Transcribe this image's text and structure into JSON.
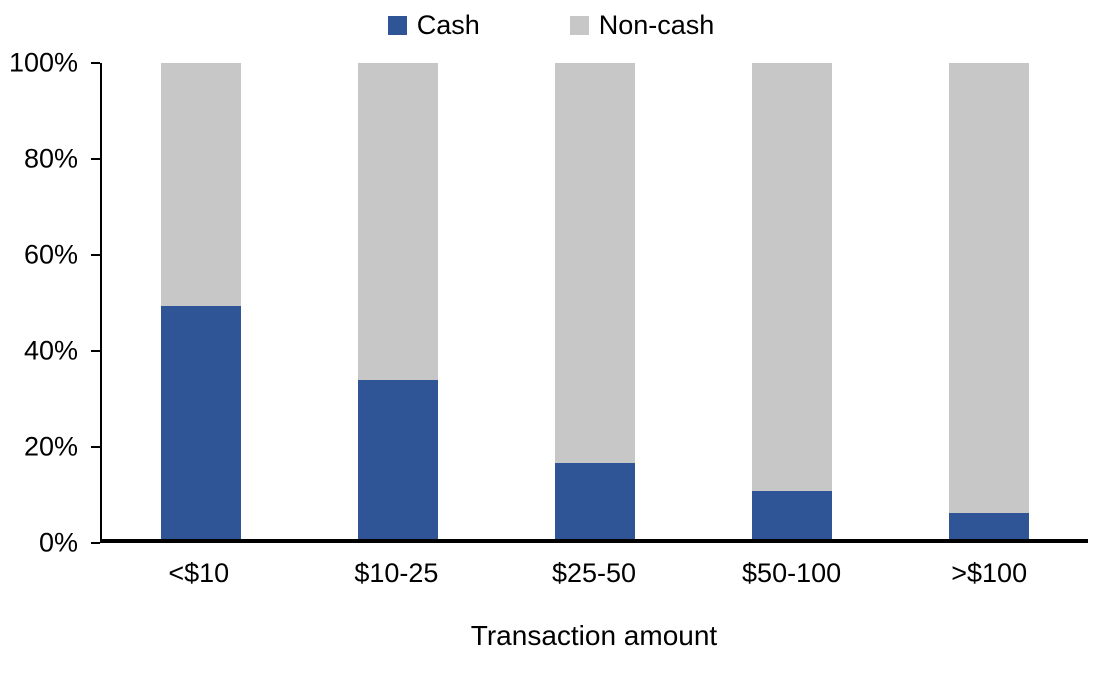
{
  "chart_data": {
    "type": "bar",
    "stacked": true,
    "stacked_100_percent": true,
    "title": "",
    "xlabel": "Transaction amount",
    "ylabel": "",
    "categories": [
      "<$10",
      "$10-25",
      "$25-50",
      "$50-100",
      ">$100"
    ],
    "series": [
      {
        "name": "Cash",
        "color": "#2F5597",
        "values": [
          49,
          33.5,
          16,
          10,
          5.5
        ]
      },
      {
        "name": "Non-cash",
        "color": "#C7C7C7",
        "values": [
          51,
          66.5,
          84,
          90,
          94.5
        ]
      }
    ],
    "ylim": [
      0,
      100
    ],
    "yticks": [
      0,
      20,
      40,
      60,
      80,
      100
    ],
    "ytick_labels": [
      "0%",
      "20%",
      "40%",
      "60%",
      "80%",
      "100%"
    ],
    "grid": false,
    "legend_position": "top-center",
    "axis_color": "#000000"
  }
}
